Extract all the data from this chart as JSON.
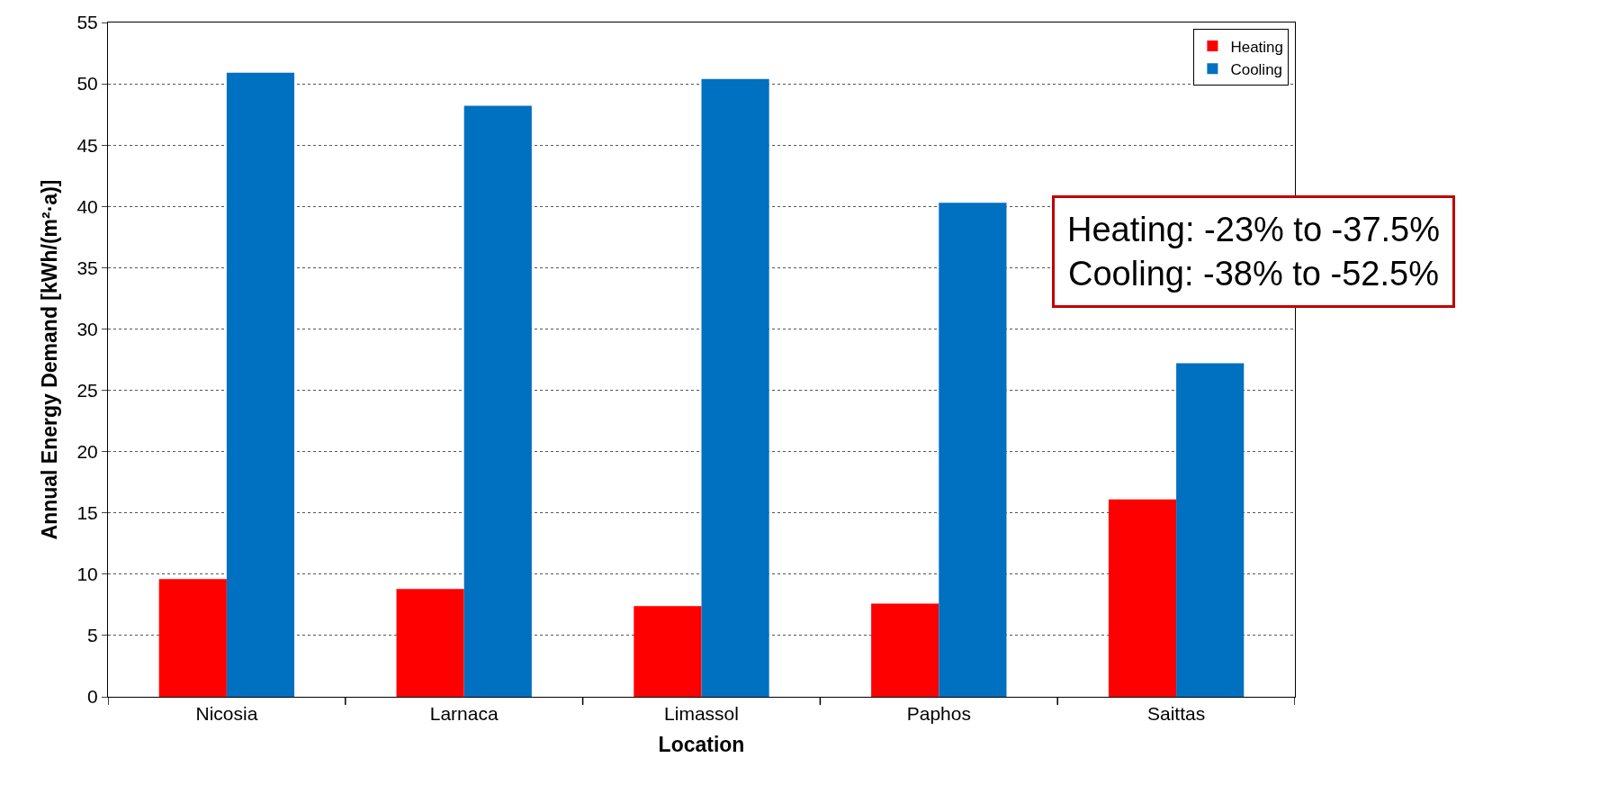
{
  "chart_data": {
    "type": "bar",
    "xlabel": "Location",
    "ylabel": "Annual Energy Demand [kWh/(m²·a)]",
    "categories": [
      "Nicosia",
      "Larnaca",
      "Limassol",
      "Paphos",
      "Saittas"
    ],
    "series": [
      {
        "name": "Heating",
        "color": "#ff0000",
        "values": [
          9.6,
          8.8,
          7.4,
          7.6,
          16.1
        ]
      },
      {
        "name": "Cooling",
        "color": "#0070c0",
        "values": [
          50.9,
          48.2,
          50.4,
          40.3,
          27.2
        ]
      }
    ],
    "ylim": [
      0,
      55
    ],
    "yticks": [
      0,
      5,
      10,
      15,
      20,
      25,
      30,
      35,
      40,
      45,
      50,
      55
    ],
    "grid": "y",
    "legend": "top right",
    "annotations": [
      "Heating: -23% to -37.5%\nCooling: -38% to -52.5%"
    ]
  }
}
